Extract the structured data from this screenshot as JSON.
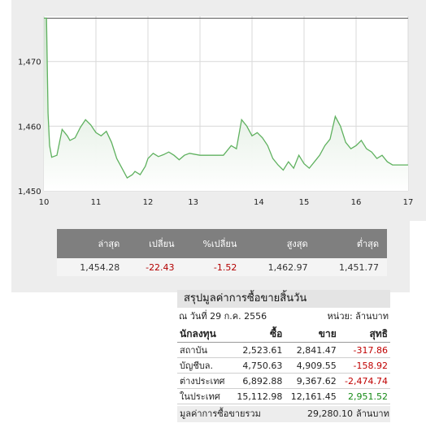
{
  "chart_data": {
    "type": "area",
    "x_ticks": [
      "10",
      "11",
      "12",
      "13",
      "14",
      "15",
      "16",
      "17"
    ],
    "y_ticks": [
      "1,450",
      "1,460",
      "1,470"
    ],
    "ylim": [
      1450,
      1477
    ],
    "xlim": [
      10,
      17
    ],
    "grid": true,
    "reference_line": 1476.7,
    "color": "#5fb15f",
    "series": [
      {
        "x": [
          10.0,
          10.05,
          10.08,
          10.11,
          10.15,
          10.25,
          10.35,
          10.45,
          10.5,
          10.6,
          10.7,
          10.8,
          10.9,
          11.0,
          11.1,
          11.2,
          11.3,
          11.4,
          11.5,
          11.6,
          11.7,
          11.75,
          11.85,
          11.95,
          12.0,
          12.1,
          12.2,
          12.3,
          12.4,
          12.5,
          12.6,
          12.7,
          12.8,
          13.0,
          13.15,
          13.3,
          13.45,
          13.6,
          13.7,
          13.8,
          13.9,
          14.0,
          14.1,
          14.2,
          14.3,
          14.4,
          14.5,
          14.6,
          14.7,
          14.8,
          14.9,
          15.0,
          15.1,
          15.2,
          15.3,
          15.4,
          15.5,
          15.6,
          15.7,
          15.8,
          15.9,
          16.0,
          16.1,
          16.2,
          16.3,
          16.4,
          16.5,
          16.6,
          16.7,
          16.8,
          16.9,
          17.0
        ],
        "y": [
          1476.7,
          1476.7,
          1462.0,
          1457.0,
          1455.2,
          1455.5,
          1459.5,
          1458.5,
          1457.8,
          1458.2,
          1459.8,
          1461.0,
          1460.2,
          1459.0,
          1458.5,
          1459.2,
          1457.5,
          1455.0,
          1453.5,
          1452.0,
          1452.5,
          1453.0,
          1452.5,
          1453.8,
          1455.0,
          1455.8,
          1455.3,
          1455.6,
          1456.0,
          1455.5,
          1454.8,
          1455.5,
          1455.8,
          1455.5,
          1455.5,
          1455.5,
          1455.5,
          1457.0,
          1456.5,
          1461.0,
          1460.0,
          1458.5,
          1459.0,
          1458.2,
          1457.0,
          1455.0,
          1454.0,
          1453.2,
          1454.5,
          1453.5,
          1455.5,
          1454.2,
          1453.5,
          1454.5,
          1455.5,
          1457.0,
          1458.0,
          1461.5,
          1460.0,
          1457.5,
          1456.5,
          1457.0,
          1457.8,
          1456.5,
          1456.0,
          1455.0,
          1455.5,
          1454.5,
          1454.0,
          1454.0,
          1454.0,
          1454.0
        ]
      }
    ]
  },
  "quote": {
    "headers": [
      "ล่าสุด",
      "เปลี่ยน",
      "%เปลี่ยน",
      "สูงสุด",
      "ต่ำสุด"
    ],
    "values": [
      "1,454.28",
      "-22.43",
      "-1.52",
      "1,462.97",
      "1,451.77"
    ]
  },
  "summary": {
    "title": "สรุปมูลค่าการซื้อขายสิ้นวัน",
    "date": "ณ วันที่ 29 ก.ค. 2556",
    "unit": "หน่วย: ล้านบาท",
    "headers": [
      "นักลงทุน",
      "ซื้อ",
      "ขาย",
      "สุทธิ"
    ],
    "rows": [
      [
        "สถาบัน",
        "2,523.61",
        "2,841.47",
        "-317.86"
      ],
      [
        "บัญชีบล.",
        "4,750.63",
        "4,909.55",
        "-158.92"
      ],
      [
        "ต่างประเทศ",
        "6,892.88",
        "9,367.62",
        "-2,474.74"
      ],
      [
        "ในประเทศ",
        "15,112.98",
        "12,161.45",
        "2,951.52"
      ]
    ],
    "total_label": "มูลค่าการซื้อขายรวม",
    "total_value": "29,280.10",
    "total_unit": "ล้านบาท"
  },
  "colors": {
    "negative": "#c00000",
    "positive": "#168a16",
    "header_bg": "#7f7f7f"
  }
}
